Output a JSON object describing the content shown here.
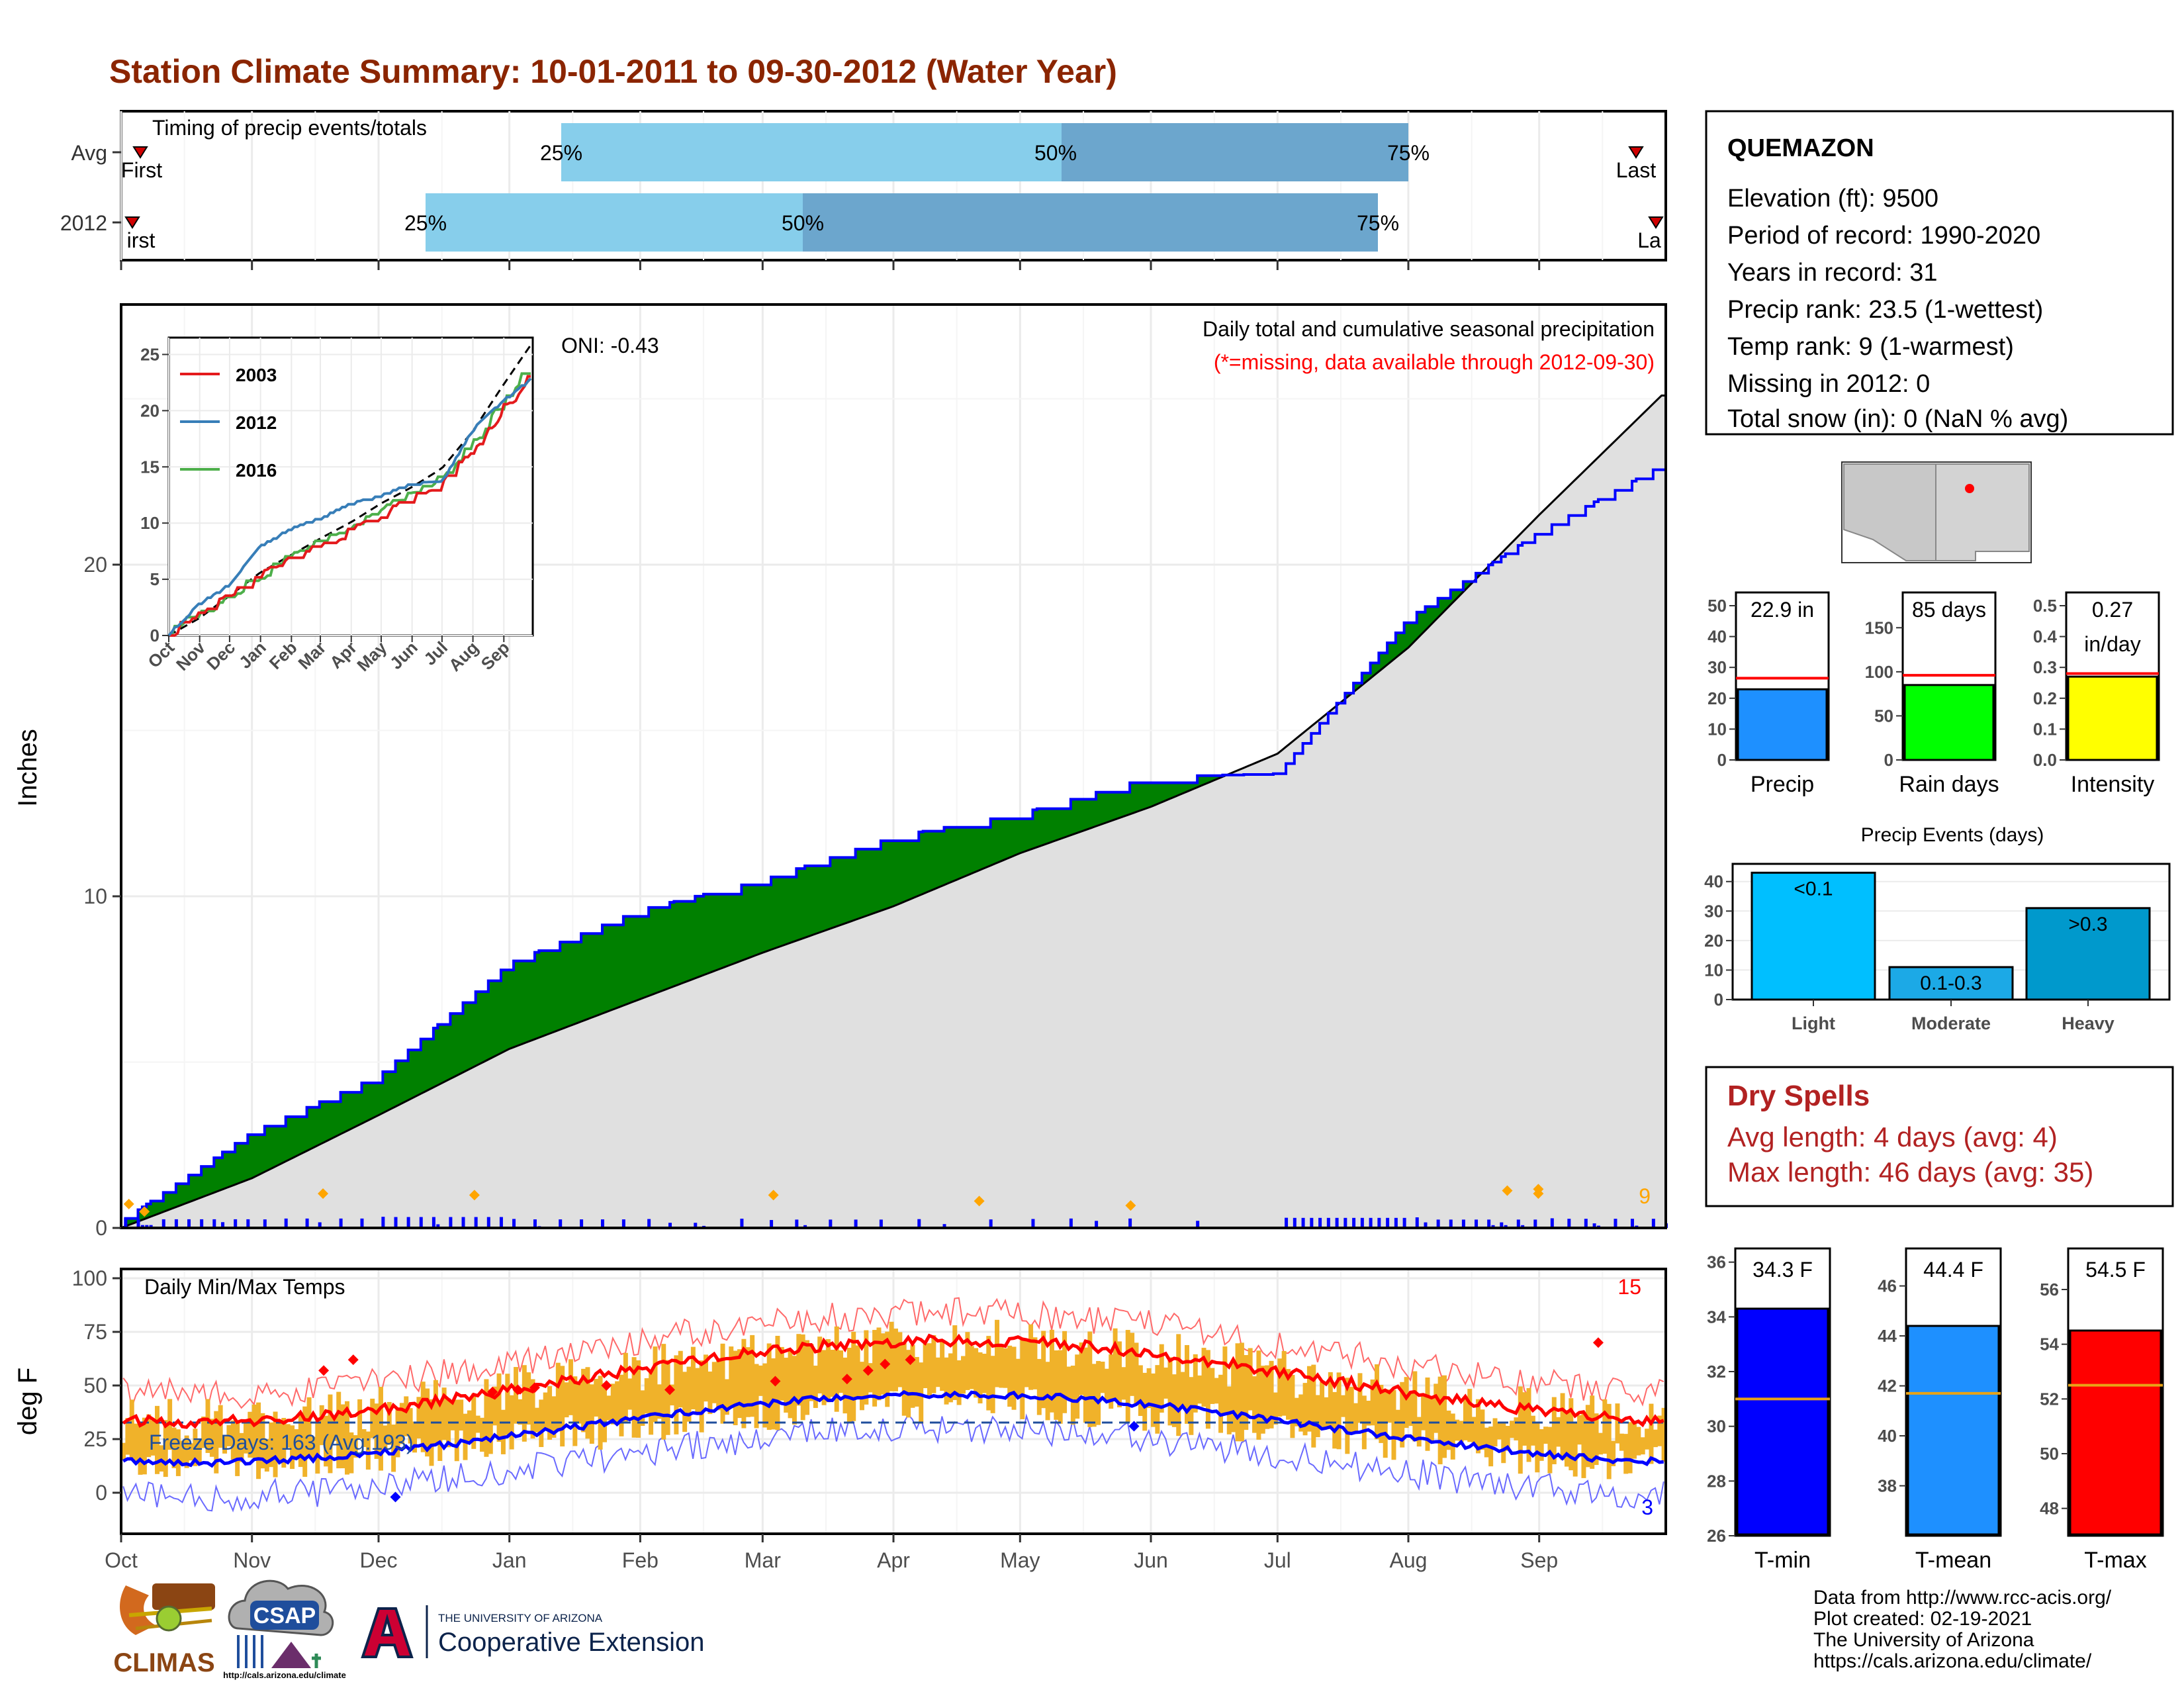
{
  "title": "Station Climate Summary: 10-01-2011 to 09-30-2012 (Water Year)",
  "colors": {
    "title": "#8B2500",
    "light_blue": "#87CEEB",
    "mid_blue": "#6CA6CD",
    "wet_fill": "#008000",
    "dry_fill": "#8B5A00",
    "avg_fill": "#E0E0E0",
    "daily_bar": "#0000FF",
    "temp_bar": "#F0B22A",
    "tmax_line": "#FF0000",
    "tmin_line": "#0000FF",
    "dry_spells": "#B22222"
  },
  "timing": {
    "title": "Timing of precip events/totals",
    "rows": [
      {
        "label": "Avg",
        "first": "First",
        "last": "Last",
        "p25": "25%",
        "p50": "50%",
        "p75": "75%"
      },
      {
        "label": "2012",
        "first": "irst",
        "last": "La",
        "p25": "25%",
        "p50": "50%",
        "p75": "75%"
      }
    ]
  },
  "precip": {
    "ylabel": "Inches",
    "yticks": [
      "0",
      "10",
      "20"
    ],
    "caption_line1": "Daily total and cumulative seasonal precipitation",
    "caption_line2": "(*=missing, data available through 2012-09-30)",
    "oni": "ONI: -0.43",
    "corner_count": "9"
  },
  "inset": {
    "yticks": [
      "0",
      "5",
      "10",
      "15",
      "20",
      "25"
    ],
    "xticks": [
      "Oct",
      "Nov",
      "Dec",
      "Jan",
      "Feb",
      "Mar",
      "Apr",
      "May",
      "Jun",
      "Jul",
      "Aug",
      "Sep"
    ],
    "legend": [
      {
        "name": "2003",
        "color": "#E41A1C"
      },
      {
        "name": "2012",
        "color": "#377EB8"
      },
      {
        "name": "2016",
        "color": "#4DAF4A"
      }
    ]
  },
  "temps": {
    "ylabel": "deg F",
    "title": "Daily Min/Max Temps",
    "yticks": [
      "0",
      "25",
      "50",
      "75",
      "100"
    ],
    "freeze_text": "Freeze Days: 163 (Avg:193)",
    "max_count": "15",
    "min_count": "3"
  },
  "months": [
    "Oct",
    "Nov",
    "Dec",
    "Jan",
    "Feb",
    "Mar",
    "Apr",
    "May",
    "Jun",
    "Jul",
    "Aug",
    "Sep"
  ],
  "station": {
    "name": "QUEMAZON",
    "lines": [
      "Elevation (ft): 9500",
      "Period of record: 1990-2020",
      "Years in record: 31",
      "Precip rank: 23.5 (1-wettest)",
      "Temp rank: 9 (1-warmest)",
      "Missing in 2012: 0",
      "Total snow (in): 0 (NaN % avg)"
    ]
  },
  "mini_bars": [
    {
      "label": "Precip",
      "value_text": "22.9 in",
      "value": 22.9,
      "avg": 26.5,
      "max": 50,
      "ticks": [
        "0",
        "10",
        "20",
        "30",
        "40",
        "50"
      ],
      "color": "#1E90FF"
    },
    {
      "label": "Rain days",
      "value_text": "85 days",
      "value": 85,
      "avg": 96,
      "max": 175,
      "ticks": [
        "0",
        "50",
        "100",
        "150"
      ],
      "color": "#00FF00"
    },
    {
      "label": "Intensity",
      "value_text": "0.27\nin/day",
      "value": 0.27,
      "avg": 0.28,
      "max": 0.5,
      "ticks": [
        "0.0",
        "0.1",
        "0.2",
        "0.3",
        "0.4",
        "0.5"
      ],
      "color": "#FFFF00"
    }
  ],
  "events": {
    "title": "Precip Events (days)",
    "yticks": [
      "0",
      "10",
      "20",
      "30",
      "40"
    ],
    "bars": [
      {
        "label": "Light",
        "text": "<0.1",
        "value": 43,
        "color": "#00BFFF"
      },
      {
        "label": "Moderate",
        "text": "0.1-0.3",
        "value": 11,
        "color": "#1CA9E6"
      },
      {
        "label": "Heavy",
        "text": ">0.3",
        "value": 31,
        "color": "#0099CC"
      }
    ]
  },
  "dry_spells": {
    "title": "Dry Spells",
    "avg_line": "Avg length: 4 days (avg: 4)",
    "max_line": "Max length: 46 days (avg: 35)"
  },
  "temp_bars": [
    {
      "label": "T-min",
      "value_text": "34.3 F",
      "value": 34.3,
      "avg": 31.0,
      "ymin": 26,
      "ymax": 36.5,
      "ticks": [
        "26",
        "28",
        "30",
        "32",
        "34",
        "36"
      ],
      "color": "#0000FF"
    },
    {
      "label": "T-mean",
      "value_text": "44.4 F",
      "value": 44.4,
      "avg": 41.7,
      "ymin": 36,
      "ymax": 47.5,
      "ticks": [
        "38",
        "40",
        "42",
        "44",
        "46"
      ],
      "color": "#1E90FF"
    },
    {
      "label": "T-max",
      "value_text": "54.5 F",
      "value": 54.5,
      "avg": 52.5,
      "ymin": 47,
      "ymax": 57.5,
      "ticks": [
        "48",
        "50",
        "52",
        "54",
        "56"
      ],
      "color": "#FF0000"
    }
  ],
  "logos": {
    "climas": "CLIMAS",
    "csap": "CSAP",
    "csap_url": "http://cals.arizona.edu/climate",
    "ua_small": "THE UNIVERSITY OF ARIZONA",
    "ua_big": "Cooperative Extension"
  },
  "footer": [
    "Data from http://www.rcc-acis.org/",
    "Plot created: 02-19-2021",
    "The University of Arizona",
    "https://cals.arizona.edu/climate/"
  ],
  "chart_data": [
    {
      "type": "line",
      "title": "Daily total and cumulative seasonal precipitation",
      "ylabel": "Inches",
      "ylim": [
        0,
        26
      ],
      "x": [
        "Oct",
        "Nov",
        "Dec",
        "Jan",
        "Feb",
        "Mar",
        "Apr",
        "May",
        "Jun",
        "Jul",
        "Aug",
        "Sep",
        "Sep-end"
      ],
      "series": [
        {
          "name": "2012",
          "values": [
            0.2,
            2.9,
            4.6,
            8.0,
            9.6,
            10.5,
            11.8,
            12.5,
            13.6,
            13.7,
            18.4,
            21.0,
            23.0
          ]
        },
        {
          "name": "Avg",
          "values": [
            0.0,
            1.5,
            3.4,
            5.4,
            6.9,
            8.3,
            9.7,
            11.3,
            12.7,
            14.3,
            17.5,
            21.5,
            25.1
          ]
        }
      ]
    },
    {
      "type": "bar",
      "title": "Precip",
      "categories": [
        "Precip"
      ],
      "values": [
        22.9
      ]
    },
    {
      "type": "bar",
      "title": "Precip Events (days)",
      "categories": [
        "Light",
        "Moderate",
        "Heavy"
      ],
      "values": [
        43,
        11,
        31
      ]
    },
    {
      "type": "bar",
      "categories": [
        "T-min",
        "T-mean",
        "T-max"
      ],
      "values": [
        34.3,
        44.4,
        54.5
      ]
    }
  ]
}
